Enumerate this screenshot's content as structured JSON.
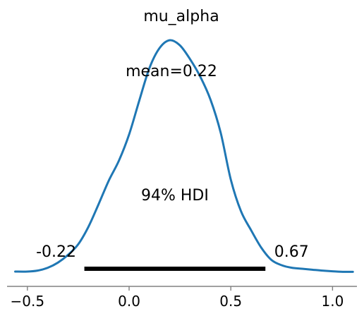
{
  "chart_data": {
    "type": "line",
    "title": "mu_alpha",
    "mean_label": "mean=0.22",
    "hdi_label": "94% HDI",
    "hdi": {
      "low": -0.22,
      "high": 0.67,
      "low_label": "-0.22",
      "high_label": "0.67"
    },
    "xlabel": "",
    "ylabel": "",
    "xlim": [
      -0.6,
      1.12
    ],
    "ylim": [
      0,
      1.0
    ],
    "x_ticks": [
      -0.5,
      0.0,
      0.5,
      1.0
    ],
    "x_tick_labels": [
      "−0.5",
      "0.0",
      "0.5",
      "1.0"
    ],
    "series": [
      {
        "color": "#1f77b4",
        "x": [
          -0.56,
          -0.5,
          -0.45,
          -0.4,
          -0.35,
          -0.3,
          -0.25,
          -0.2,
          -0.15,
          -0.1,
          -0.05,
          0.0,
          0.05,
          0.1,
          0.15,
          0.2,
          0.25,
          0.3,
          0.35,
          0.4,
          0.45,
          0.5,
          0.55,
          0.6,
          0.65,
          0.7,
          0.75,
          0.8,
          0.85,
          0.9,
          0.95,
          1.0,
          1.05,
          1.1
        ],
        "y": [
          0.003,
          0.003,
          0.007,
          0.019,
          0.041,
          0.074,
          0.119,
          0.193,
          0.289,
          0.389,
          0.474,
          0.585,
          0.729,
          0.867,
          0.952,
          0.985,
          0.963,
          0.904,
          0.83,
          0.733,
          0.593,
          0.393,
          0.259,
          0.178,
          0.104,
          0.052,
          0.03,
          0.019,
          0.015,
          0.011,
          0.007,
          0.004,
          0.002,
          0.002
        ]
      }
    ],
    "grid": false,
    "legend": "none"
  }
}
